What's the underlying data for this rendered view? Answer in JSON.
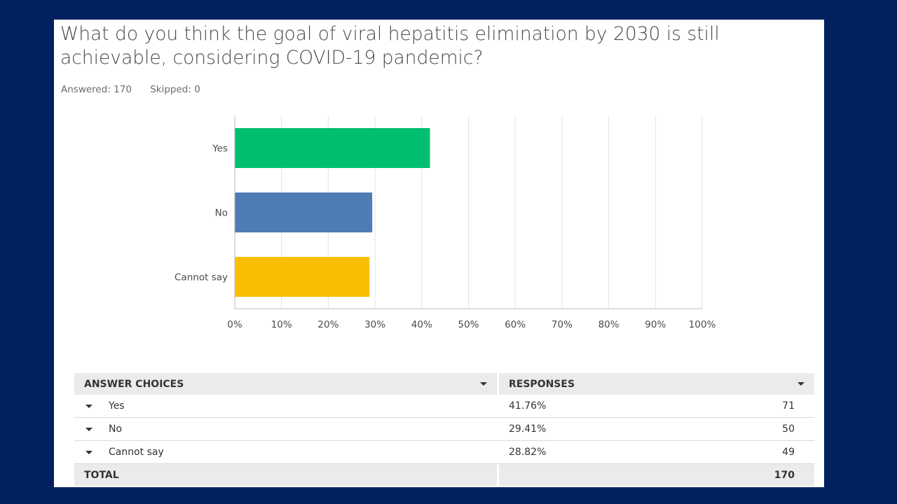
{
  "question": {
    "title": "What do you think the goal of viral hepatitis elimination by 2030 is still achievable, considering COVID-19 pandemic?",
    "answered": "Answered: 170",
    "skipped": "Skipped: 0"
  },
  "colors": {
    "background": "#002060",
    "yes": "#00bf6f",
    "no": "#507cb6",
    "cannot_say": "#f9be00"
  },
  "chart_data": {
    "type": "bar",
    "orientation": "horizontal",
    "categories": [
      "Yes",
      "No",
      "Cannot say"
    ],
    "values": [
      41.76,
      29.41,
      28.82
    ],
    "colors": [
      "#00bf6f",
      "#507cb6",
      "#f9be00"
    ],
    "xlim": [
      0,
      100
    ],
    "xticks": [
      "0%",
      "10%",
      "20%",
      "30%",
      "40%",
      "50%",
      "60%",
      "70%",
      "80%",
      "90%",
      "100%"
    ],
    "grid": true
  },
  "table": {
    "headers": {
      "choices": "ANSWER CHOICES",
      "responses": "RESPONSES"
    },
    "rows": [
      {
        "choice": "Yes",
        "percent": "41.76%",
        "count": "71"
      },
      {
        "choice": "No",
        "percent": "29.41%",
        "count": "50"
      },
      {
        "choice": "Cannot say",
        "percent": "28.82%",
        "count": "49"
      }
    ],
    "total": {
      "label": "TOTAL",
      "count": "170"
    }
  }
}
